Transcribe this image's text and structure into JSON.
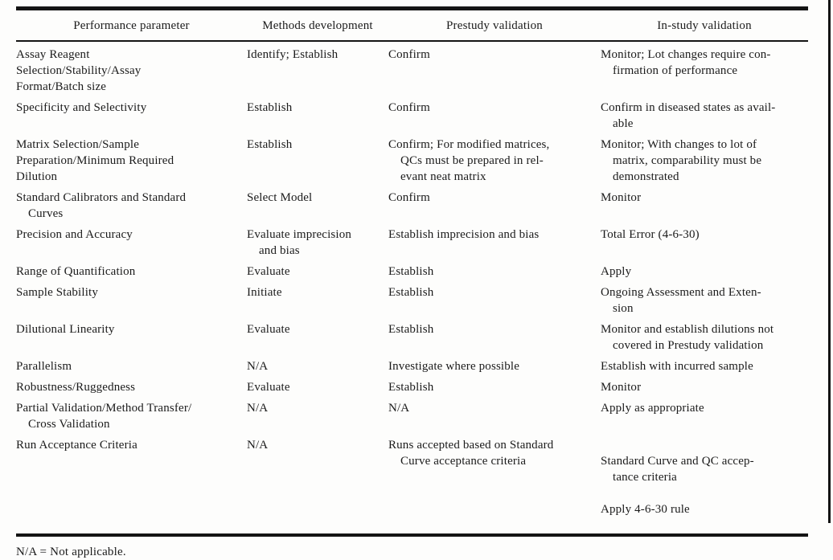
{
  "table": {
    "columns": [
      "Performance parameter",
      "Methods development",
      "Prestudy validation",
      "In-study validation"
    ],
    "rows": [
      {
        "parameter": "Assay Reagent\nSelection/Stability/Assay\nFormat/Batch size",
        "methods": "Identify; Establish",
        "prestudy": "Confirm",
        "instudy": "Monitor; Lot changes require con-\nfirmation of performance"
      },
      {
        "parameter": "Specificity and Selectivity",
        "methods": "Establish",
        "prestudy": "Confirm",
        "instudy": "Confirm in diseased states as avail-\nable"
      },
      {
        "parameter": "Matrix Selection/Sample\nPreparation/Minimum Required\nDilution",
        "methods": "Establish",
        "prestudy": "Confirm; For modified matrices,\nQCs must be prepared in rel-\nevant neat matrix",
        "instudy": "Monitor; With changes to lot of\nmatrix, comparability must be\ndemonstrated"
      },
      {
        "parameter": "Standard Calibrators and Standard\nCurves",
        "methods": "Select Model",
        "prestudy": "Confirm",
        "instudy": "Monitor"
      },
      {
        "parameter": "Precision and Accuracy",
        "methods": "Evaluate imprecision\nand bias",
        "prestudy": "Establish imprecision and bias",
        "instudy": "Total Error (4-6-30)"
      },
      {
        "parameter": "Range of Quantification",
        "methods": "Evaluate",
        "prestudy": "Establish",
        "instudy": "Apply"
      },
      {
        "parameter": "Sample Stability",
        "methods": "Initiate",
        "prestudy": "Establish",
        "instudy": "Ongoing Assessment and Exten-\nsion"
      },
      {
        "parameter": "Dilutional Linearity",
        "methods": "Evaluate",
        "prestudy": "Establish",
        "instudy": "Monitor and establish dilutions not\ncovered in Prestudy validation"
      },
      {
        "parameter": "Parallelism",
        "methods": "N/A",
        "prestudy": "Investigate where possible",
        "instudy": "Establish with incurred sample"
      },
      {
        "parameter": "Robustness/Ruggedness",
        "methods": "Evaluate",
        "prestudy": "Establish",
        "instudy": "Monitor"
      },
      {
        "parameter": "Partial Validation/Method Transfer/\nCross Validation",
        "methods": "N/A",
        "prestudy": "N/A",
        "instudy": "Apply as appropriate"
      },
      {
        "parameter": "Run Acceptance Criteria",
        "methods": "N/A",
        "prestudy": "Runs accepted based on Standard\nCurve acceptance criteria",
        "instudy": "Standard Curve and QC accep-\ntance criteria",
        "instudy2": "Apply 4-6-30 rule"
      }
    ]
  },
  "footnote": "N/A = Not applicable."
}
